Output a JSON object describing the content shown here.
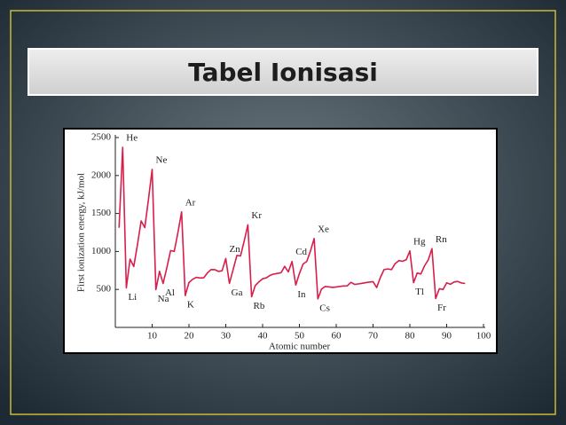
{
  "slide": {
    "title": "Tabel Ionisasi"
  },
  "chart_data": {
    "type": "line",
    "x_label": "Atomic number",
    "y_label": "First ionization energy, kJ/mol",
    "x": [
      1,
      2,
      3,
      4,
      5,
      6,
      7,
      8,
      9,
      10,
      11,
      12,
      13,
      14,
      15,
      16,
      17,
      18,
      19,
      20,
      21,
      22,
      23,
      24,
      25,
      26,
      27,
      28,
      29,
      30,
      31,
      32,
      33,
      34,
      35,
      36,
      37,
      38,
      39,
      40,
      41,
      42,
      43,
      44,
      45,
      46,
      47,
      48,
      49,
      50,
      51,
      52,
      53,
      54,
      55,
      56,
      57,
      58,
      59,
      60,
      61,
      62,
      63,
      64,
      65,
      66,
      67,
      68,
      69,
      70,
      71,
      72,
      73,
      74,
      75,
      76,
      77,
      78,
      79,
      80,
      81,
      82,
      83,
      84,
      85,
      86,
      87,
      88,
      89,
      90,
      91,
      92,
      93,
      94,
      95
    ],
    "values": [
      1312,
      2372,
      520,
      900,
      801,
      1086,
      1402,
      1314,
      1681,
      2081,
      496,
      738,
      578,
      787,
      1012,
      1000,
      1251,
      1521,
      419,
      590,
      633,
      659,
      651,
      653,
      717,
      762,
      760,
      737,
      745,
      906,
      579,
      762,
      947,
      941,
      1140,
      1351,
      403,
      550,
      600,
      640,
      652,
      684,
      702,
      710,
      720,
      804,
      731,
      868,
      558,
      709,
      834,
      869,
      1008,
      1170,
      376,
      503,
      538,
      534,
      527,
      533,
      540,
      545,
      547,
      593,
      566,
      573,
      581,
      589,
      597,
      603,
      524,
      659,
      761,
      770,
      760,
      840,
      880,
      870,
      890,
      1007,
      589,
      716,
      703,
      812,
      890,
      1037,
      380,
      509,
      499,
      587,
      568,
      598,
      605,
      585,
      578
    ],
    "color": "#d81e4b",
    "xlim": [
      0,
      100
    ],
    "ylim": [
      0,
      2500
    ],
    "xticks": [
      10,
      20,
      30,
      40,
      50,
      60,
      70,
      80,
      90,
      100
    ],
    "yticks": [
      500,
      1000,
      1500,
      2000,
      2500
    ],
    "grid": false,
    "annotations": [
      {
        "text": "He",
        "x": 2
      },
      {
        "text": "Li",
        "x": 3
      },
      {
        "text": "Ne",
        "x": 10
      },
      {
        "text": "Na",
        "x": 11
      },
      {
        "text": "Al",
        "x": 13
      },
      {
        "text": "Ar",
        "x": 18
      },
      {
        "text": "K",
        "x": 19
      },
      {
        "text": "Zn",
        "x": 30
      },
      {
        "text": "Ga",
        "x": 31
      },
      {
        "text": "Kr",
        "x": 36
      },
      {
        "text": "Rb",
        "x": 37
      },
      {
        "text": "Cd",
        "x": 48
      },
      {
        "text": "In",
        "x": 49
      },
      {
        "text": "Xe",
        "x": 54
      },
      {
        "text": "Cs",
        "x": 55
      },
      {
        "text": "Hg",
        "x": 80
      },
      {
        "text": "Tl",
        "x": 81
      },
      {
        "text": "Rn",
        "x": 86
      },
      {
        "text": "Fr",
        "x": 87
      }
    ]
  }
}
